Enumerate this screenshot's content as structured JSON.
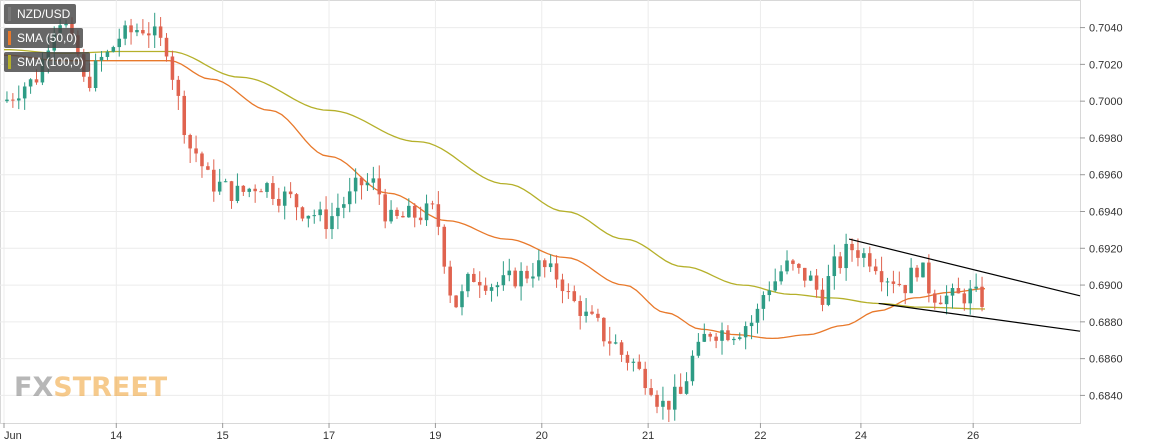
{
  "legend": [
    {
      "label": "NZD/USD",
      "color": "#555555"
    },
    {
      "label": "SMA (50,0)",
      "color": "#e8792b"
    },
    {
      "label": "SMA (100,0)",
      "color": "#b5b02a"
    }
  ],
  "logo": {
    "fx": "FX",
    "street": "STREET"
  },
  "colors": {
    "up": "#2e9c85",
    "down": "#e0634f",
    "sma50": "#e8792b",
    "sma100": "#b5b02a",
    "trendline": "#000000",
    "grid": "#ececec"
  },
  "chart_data": {
    "type": "candlestick",
    "title": "",
    "xlabel": "",
    "ylabel": "",
    "ylim": [
      0.6825,
      0.7055
    ],
    "x_tick_labels": [
      {
        "label": "Jun",
        "index": 0
      },
      {
        "label": "14",
        "index": 19
      },
      {
        "label": "15",
        "index": 37
      },
      {
        "label": "17",
        "index": 55
      },
      {
        "label": "19",
        "index": 73
      },
      {
        "label": "20",
        "index": 91
      },
      {
        "label": "21",
        "index": 109
      },
      {
        "label": "22",
        "index": 128
      },
      {
        "label": "24",
        "index": 145
      },
      {
        "label": "26",
        "index": 164
      }
    ],
    "y_ticks": [
      0.684,
      0.686,
      0.688,
      0.69,
      0.692,
      0.694,
      0.696,
      0.698,
      0.7,
      0.702,
      0.704
    ],
    "num_candles": 166,
    "price_close_path": [
      [
        0,
        0.7
      ],
      [
        5,
        0.701
      ],
      [
        10,
        0.7045
      ],
      [
        13,
        0.7025
      ],
      [
        14,
        0.701
      ],
      [
        18,
        0.7025
      ],
      [
        20,
        0.7035
      ],
      [
        24,
        0.704
      ],
      [
        28,
        0.703
      ],
      [
        30,
        0.7
      ],
      [
        32,
        0.6975
      ],
      [
        36,
        0.6955
      ],
      [
        40,
        0.695
      ],
      [
        44,
        0.6955
      ],
      [
        48,
        0.6948
      ],
      [
        52,
        0.694
      ],
      [
        55,
        0.6935
      ],
      [
        58,
        0.6945
      ],
      [
        61,
        0.6955
      ],
      [
        63,
        0.6955
      ],
      [
        66,
        0.6935
      ],
      [
        70,
        0.6938
      ],
      [
        73,
        0.694
      ],
      [
        77,
        0.689
      ],
      [
        80,
        0.6905
      ],
      [
        84,
        0.69
      ],
      [
        88,
        0.6905
      ],
      [
        91,
        0.691
      ],
      [
        94,
        0.6905
      ],
      [
        97,
        0.689
      ],
      [
        100,
        0.688
      ],
      [
        103,
        0.687
      ],
      [
        106,
        0.686
      ],
      [
        109,
        0.685
      ],
      [
        112,
        0.6835
      ],
      [
        115,
        0.684
      ],
      [
        117,
        0.686
      ],
      [
        120,
        0.6875
      ],
      [
        124,
        0.6875
      ],
      [
        127,
        0.688
      ],
      [
        130,
        0.69
      ],
      [
        133,
        0.691
      ],
      [
        136,
        0.6905
      ],
      [
        139,
        0.6895
      ],
      [
        141,
        0.691
      ],
      [
        144,
        0.692
      ],
      [
        147,
        0.6915
      ],
      [
        150,
        0.6905
      ],
      [
        153,
        0.69
      ],
      [
        155,
        0.691
      ],
      [
        158,
        0.6895
      ],
      [
        161,
        0.6893
      ],
      [
        164,
        0.6895
      ],
      [
        166,
        0.6892
      ]
    ],
    "series": [
      {
        "name": "SMA (50,0)",
        "points": [
          [
            0,
            0.7025
          ],
          [
            10,
            0.7022
          ],
          [
            20,
            0.7022
          ],
          [
            28,
            0.7022
          ],
          [
            35,
            0.7012
          ],
          [
            45,
            0.6995
          ],
          [
            55,
            0.697
          ],
          [
            65,
            0.695
          ],
          [
            75,
            0.6935
          ],
          [
            85,
            0.6925
          ],
          [
            95,
            0.6915
          ],
          [
            105,
            0.69
          ],
          [
            112,
            0.6885
          ],
          [
            118,
            0.6876
          ],
          [
            124,
            0.6873
          ],
          [
            130,
            0.6871
          ],
          [
            136,
            0.6873
          ],
          [
            142,
            0.6878
          ],
          [
            148,
            0.6886
          ],
          [
            154,
            0.6893
          ],
          [
            160,
            0.6896
          ],
          [
            166,
            0.6898
          ]
        ]
      },
      {
        "name": "SMA (100,0)",
        "points": [
          [
            0,
            0.7028
          ],
          [
            10,
            0.7026
          ],
          [
            20,
            0.7027
          ],
          [
            28,
            0.7027
          ],
          [
            40,
            0.7013
          ],
          [
            55,
            0.6995
          ],
          [
            70,
            0.6978
          ],
          [
            85,
            0.6955
          ],
          [
            95,
            0.694
          ],
          [
            105,
            0.6925
          ],
          [
            115,
            0.691
          ],
          [
            125,
            0.69
          ],
          [
            133,
            0.6895
          ],
          [
            140,
            0.6893
          ],
          [
            148,
            0.689
          ],
          [
            155,
            0.6888
          ],
          [
            166,
            0.6887
          ]
        ]
      }
    ],
    "annotations": [
      {
        "type": "trendline",
        "from": [
          143,
          0.6925
        ],
        "to": [
          200,
          0.688
        ]
      },
      {
        "type": "trendline",
        "from": [
          148,
          0.689
        ],
        "to": [
          200,
          0.6867
        ]
      }
    ]
  }
}
